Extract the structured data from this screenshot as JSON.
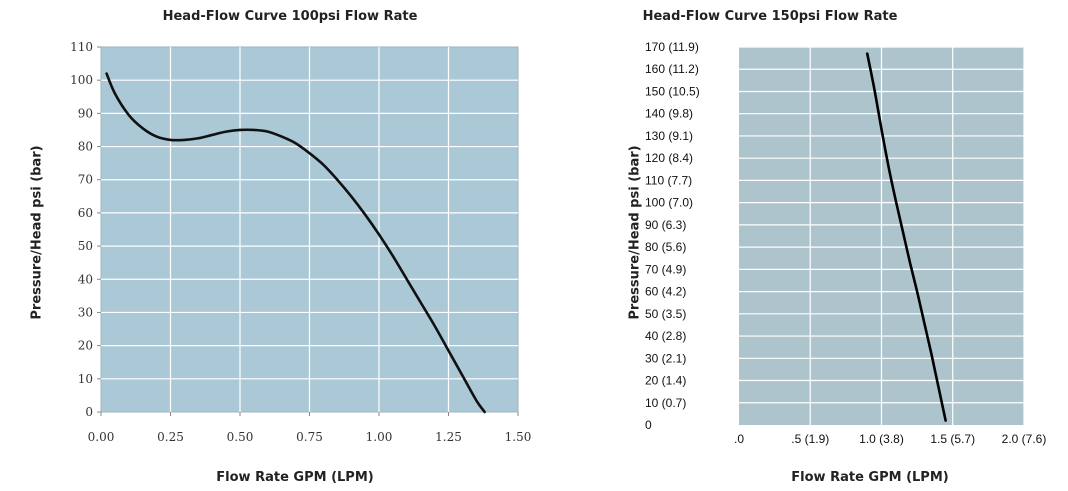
{
  "chart_data": [
    {
      "type": "line",
      "title": "Head-Flow Curve 100psi Flow Rate",
      "xlabel": "Flow Rate GPM (LPM)",
      "ylabel": "Pressure/Head psi (bar)",
      "xlim": [
        0,
        1.5
      ],
      "ylim": [
        0,
        110
      ],
      "x_ticks": [
        "0.00",
        "0.25",
        "0.50",
        "0.75",
        "1.00",
        "1.25",
        "1.50"
      ],
      "y_ticks": [
        "0",
        "10",
        "20",
        "30",
        "40",
        "50",
        "60",
        "70",
        "80",
        "90",
        "100",
        "110"
      ],
      "grid": true,
      "background": "#abc8d6",
      "line_color": "#111111",
      "series": [
        {
          "x": [
            0.02,
            0.05,
            0.1,
            0.15,
            0.2,
            0.25,
            0.3,
            0.35,
            0.4,
            0.45,
            0.5,
            0.55,
            0.6,
            0.65,
            0.7,
            0.75,
            0.8,
            0.85,
            0.9,
            0.95,
            1.0,
            1.05,
            1.1,
            1.15,
            1.2,
            1.25,
            1.3,
            1.35,
            1.38
          ],
          "y": [
            102,
            96,
            89.5,
            85.5,
            83,
            82,
            82,
            82.5,
            83.5,
            84.5,
            85,
            85,
            84.5,
            83,
            81,
            78,
            74.5,
            70,
            65,
            59.5,
            53.5,
            47,
            40,
            33,
            26,
            18.5,
            11,
            3.5,
            0
          ]
        }
      ]
    },
    {
      "type": "line",
      "title": "Head-Flow Curve 150psi Flow Rate",
      "xlabel": "Flow Rate GPM (LPM)",
      "ylabel": "Pressure/Head psi (bar)",
      "xlim": [
        0,
        2.0
      ],
      "ylim": [
        0,
        170
      ],
      "x_ticks": [
        ".0",
        ".5 (1.9)",
        "1.0 (3.8)",
        "1.5 (5.7)",
        "2.0 (7.6)"
      ],
      "y_ticks": [
        "0",
        "10 (0.7)",
        "20 (1.4)",
        "30 (2.1)",
        "40 (2.8)",
        "50 (3.5)",
        "60 (4.2)",
        "70 (4.9)",
        "80 (5.6)",
        "90 (6.3)",
        "100 (7.0)",
        "110 (7.7)",
        "120 (8.4)",
        "130 (9.1)",
        "140 (9.8)",
        "150 (10.5)",
        "160 (11.2)",
        "170 (11.9)"
      ],
      "grid": true,
      "background": "#aec4cd",
      "line_color": "#000000",
      "series": [
        {
          "x": [
            0.9,
            0.95,
            1.0,
            1.05,
            1.1,
            1.15,
            1.2,
            1.25,
            1.3,
            1.35,
            1.4,
            1.45
          ],
          "y": [
            167,
            151,
            133,
            116,
            101,
            87,
            73,
            60,
            46,
            32,
            17,
            2
          ]
        }
      ]
    }
  ]
}
